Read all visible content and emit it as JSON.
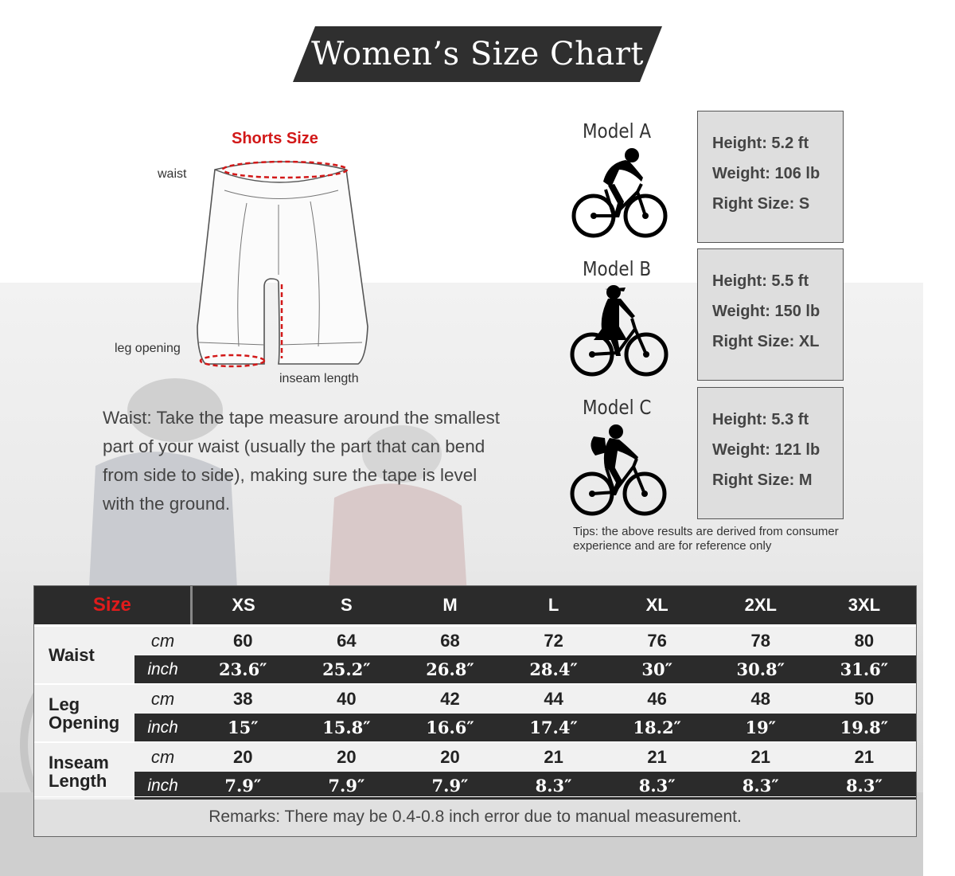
{
  "title": "Women’s Size Chart",
  "diagram": {
    "title": "Shorts Size",
    "labels": {
      "waist": "waist",
      "leg_opening": "leg opening",
      "inseam": "inseam length"
    }
  },
  "waist_instruction": "Waist: Take the tape measure around the smallest part of your waist (usually the part that can bend from side to side), making sure the tape is level with the ground.",
  "models": [
    {
      "name": "Model A",
      "height": "Height: 5.2 ft",
      "weight": "Weight: 106 lb",
      "size": "Right Size: S"
    },
    {
      "name": "Model B",
      "height": "Height: 5.5 ft",
      "weight": "Weight: 150 lb",
      "size": "Right Size: XL"
    },
    {
      "name": "Model C",
      "height": "Height: 5.3 ft",
      "weight": "Weight: 121 lb",
      "size": "Right Size: M"
    }
  ],
  "tips": "Tips: the above results are derived from consumer experience and are for reference only",
  "table": {
    "size_label": "Size",
    "sizes": [
      "XS",
      "S",
      "M",
      "L",
      "XL",
      "2XL",
      "3XL"
    ],
    "units": {
      "cm": "cm",
      "inch": "inch"
    },
    "rows": [
      {
        "label": "Waist",
        "cm": [
          "60",
          "64",
          "68",
          "72",
          "76",
          "78",
          "80"
        ],
        "inch": [
          "23.6″",
          "25.2″",
          "26.8″",
          "28.4″",
          "30″",
          "30.8″",
          "31.6″"
        ]
      },
      {
        "label": "Leg Opening",
        "cm": [
          "38",
          "40",
          "42",
          "44",
          "46",
          "48",
          "50"
        ],
        "inch": [
          "15″",
          "15.8″",
          "16.6″",
          "17.4″",
          "18.2″",
          "19″",
          "19.8″"
        ]
      },
      {
        "label": "Inseam Length",
        "cm": [
          "20",
          "20",
          "20",
          "21",
          "21",
          "21",
          "21"
        ],
        "inch": [
          "7.9″",
          "7.9″",
          "7.9″",
          "8.3″",
          "8.3″",
          "8.3″",
          "8.3″"
        ]
      }
    ],
    "remarks": "Remarks: There may be 0.4-0.8 inch error due to manual measurement."
  },
  "colors": {
    "accent_red": "#d21818",
    "dark": "#2b2b2b",
    "model_box": "#dedede"
  },
  "icons": [
    "cyclist-model-a-icon",
    "cyclist-model-b-icon",
    "cyclist-model-c-icon",
    "shorts-diagram-icon"
  ]
}
